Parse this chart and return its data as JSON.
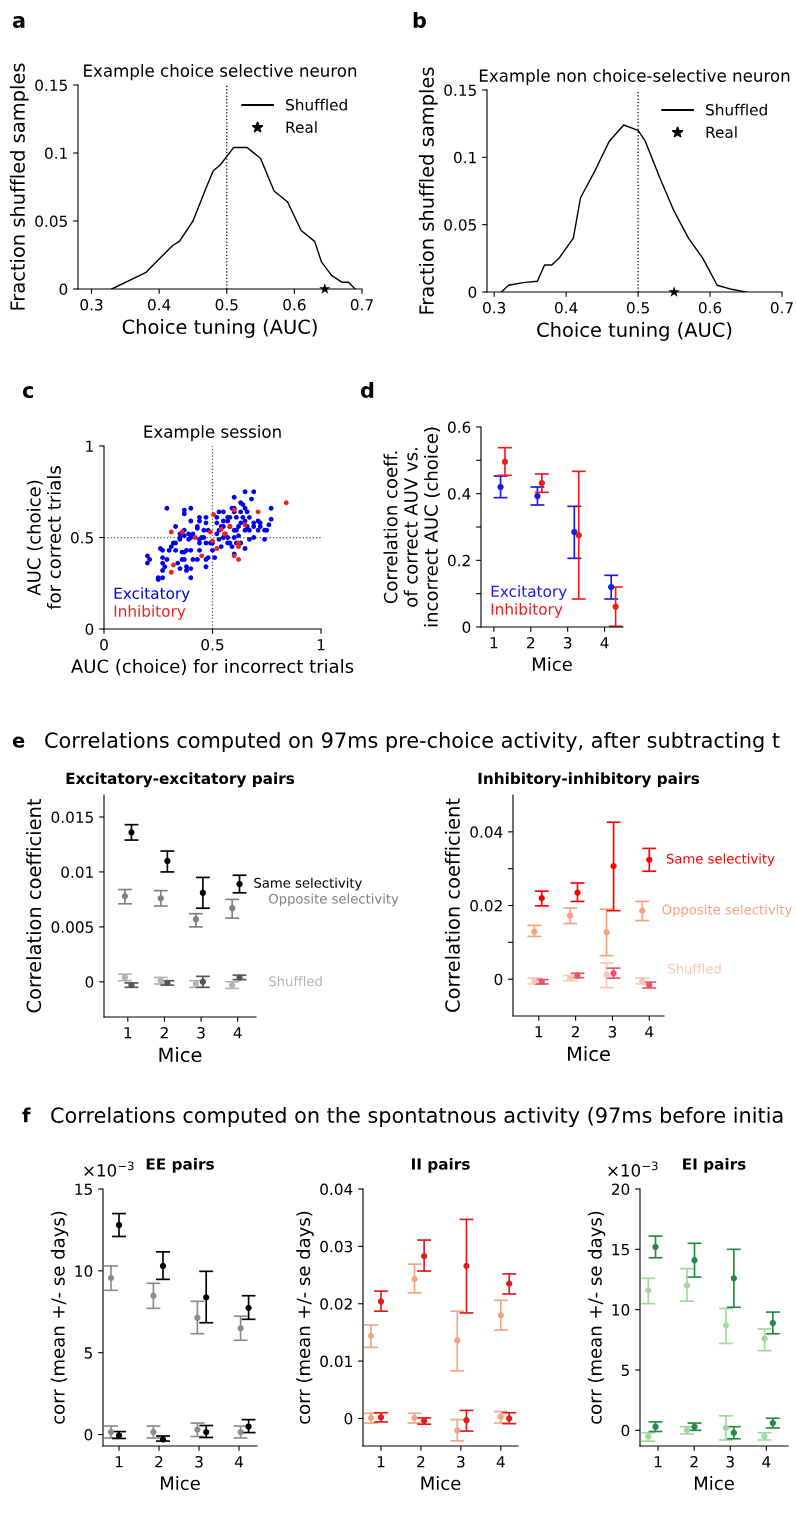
{
  "chart_data": [
    {
      "type": "line",
      "title": "Example choice selective neuron",
      "xlabel": "Choice tuning (AUC)",
      "ylabel": "Fraction shuffled samples",
      "annotations": [
        "a"
      ],
      "xlim": [
        0.28,
        0.7
      ],
      "xticks": [
        0.3,
        0.4,
        0.5,
        0.6,
        0.7
      ],
      "ylim": [
        0,
        0.15
      ],
      "yticks": [
        0,
        0.05,
        0.1,
        0.15
      ],
      "legend": "top right",
      "ref_lines": [
        {
          "axis": "x",
          "value": 0.5,
          "color": "#000000",
          "line_style": "dotted"
        }
      ],
      "series": [
        {
          "name": "Shuffled",
          "type": "line",
          "color": "#000000",
          "x": [
            0.33,
            0.38,
            0.4,
            0.42,
            0.43,
            0.45,
            0.47,
            0.48,
            0.49,
            0.51,
            0.53,
            0.55,
            0.57,
            0.59,
            0.61,
            0.63,
            0.64,
            0.655,
            0.67,
            0.68,
            0.69
          ],
          "values": [
            0,
            0.012,
            0.022,
            0.032,
            0.035,
            0.05,
            0.075,
            0.087,
            0.091,
            0.104,
            0.104,
            0.096,
            0.072,
            0.064,
            0.043,
            0.035,
            0.02,
            0.01,
            0.005,
            0.005,
            0
          ]
        },
        {
          "name": "Real",
          "type": "scatter",
          "marker": "star",
          "color": "#000000",
          "x": [
            0.645
          ],
          "values": [
            0
          ]
        }
      ]
    },
    {
      "type": "line",
      "title": "Example non choice-selective neuron",
      "xlabel": "Choice tuning (AUC)",
      "ylabel": "Fraction shuffled samples",
      "annotations": [
        "b"
      ],
      "xlim": [
        0.29,
        0.7
      ],
      "xticks": [
        0.3,
        0.4,
        0.5,
        0.6,
        0.7
      ],
      "ylim": [
        0,
        0.15
      ],
      "yticks": [
        0,
        0.05,
        0.1,
        0.15
      ],
      "legend": "top right",
      "ref_lines": [
        {
          "axis": "x",
          "value": 0.5,
          "color": "#000000",
          "line_style": "dotted"
        }
      ],
      "series": [
        {
          "name": "Shuffled",
          "type": "line",
          "color": "#000000",
          "x": [
            0.31,
            0.32,
            0.34,
            0.36,
            0.37,
            0.38,
            0.39,
            0.41,
            0.42,
            0.44,
            0.46,
            0.48,
            0.5,
            0.51,
            0.53,
            0.55,
            0.57,
            0.59,
            0.6,
            0.61,
            0.63,
            0.65
          ],
          "values": [
            0,
            0.005,
            0.007,
            0.008,
            0.02,
            0.02,
            0.025,
            0.04,
            0.07,
            0.09,
            0.112,
            0.124,
            0.12,
            0.112,
            0.085,
            0.06,
            0.04,
            0.025,
            0.015,
            0.005,
            0.002,
            0
          ]
        },
        {
          "name": "Real",
          "type": "scatter",
          "marker": "star",
          "color": "#000000",
          "x": [
            0.55
          ],
          "values": [
            0
          ]
        }
      ]
    },
    {
      "type": "scatter",
      "title": "Example session",
      "xlabel": "AUC (choice) for incorrect trials",
      "ylabel": "AUC (choice)\nfor correct trials",
      "annotations": [
        "c"
      ],
      "xlim": [
        0,
        1
      ],
      "xticks": [
        0,
        0.5,
        1
      ],
      "ylim": [
        0,
        1
      ],
      "yticks": [
        0,
        0.5,
        1
      ],
      "legend": "bottom left",
      "marker": "circle",
      "ref_lines": [
        {
          "axis": "x",
          "value": 0.5,
          "color": "#555555",
          "line_style": "dotted"
        },
        {
          "axis": "y",
          "value": 0.5,
          "color": "#555555",
          "line_style": "dotted"
        }
      ],
      "series": [
        {
          "name": "Excitatory",
          "color": "#0000ee",
          "x": [
            0.2,
            0.2,
            0.21,
            0.25,
            0.27,
            0.27,
            0.27,
            0.27,
            0.29,
            0.29,
            0.26,
            0.27,
            0.3,
            0.31,
            0.32,
            0.33,
            0.33,
            0.35,
            0.36,
            0.37,
            0.37,
            0.38,
            0.33,
            0.37,
            0.37,
            0.39,
            0.4,
            0.41,
            0.35,
            0.35,
            0.4,
            0.37,
            0.37,
            0.4,
            0.43,
            0.44,
            0.45,
            0.46,
            0.47,
            0.44,
            0.44,
            0.49,
            0.46,
            0.47,
            0.44,
            0.44,
            0.48,
            0.39,
            0.4,
            0.41,
            0.36,
            0.38,
            0.38,
            0.4,
            0.43,
            0.47,
            0.48,
            0.5,
            0.51,
            0.52,
            0.53,
            0.52,
            0.52,
            0.53,
            0.54,
            0.55,
            0.55,
            0.57,
            0.57,
            0.58,
            0.58,
            0.6,
            0.6,
            0.61,
            0.62,
            0.63,
            0.61,
            0.63,
            0.64,
            0.65,
            0.67,
            0.6,
            0.64,
            0.63,
            0.65,
            0.66,
            0.69,
            0.69,
            0.69,
            0.71,
            0.71,
            0.72,
            0.74,
            0.61,
            0.58,
            0.57,
            0.55,
            0.53,
            0.47,
            0.4,
            0.34,
            0.35,
            0.25,
            0.28,
            0.69,
            0.65,
            0.6,
            0.6,
            0.59,
            0.67,
            0.68,
            0.55,
            0.66,
            0.67,
            0.72,
            0.75,
            0.76,
            0.74,
            0.77,
            0.43,
            0.47,
            0.5,
            0.54,
            0.57,
            0.59,
            0.6,
            0.63,
            0.65,
            0.62,
            0.65,
            0.77
          ],
          "values": [
            0.4,
            0.36,
            0.38,
            0.27,
            0.28,
            0.32,
            0.36,
            0.39,
            0.38,
            0.66,
            0.44,
            0.43,
            0.43,
            0.45,
            0.47,
            0.47,
            0.43,
            0.49,
            0.42,
            0.42,
            0.38,
            0.43,
            0.56,
            0.54,
            0.51,
            0.52,
            0.5,
            0.52,
            0.52,
            0.5,
            0.59,
            0.65,
            0.63,
            0.66,
            0.56,
            0.49,
            0.5,
            0.5,
            0.47,
            0.43,
            0.47,
            0.47,
            0.54,
            0.58,
            0.61,
            0.59,
            0.54,
            0.49,
            0.43,
            0.38,
            0.38,
            0.34,
            0.32,
            0.33,
            0.38,
            0.38,
            0.39,
            0.43,
            0.39,
            0.52,
            0.54,
            0.58,
            0.61,
            0.64,
            0.56,
            0.59,
            0.56,
            0.61,
            0.59,
            0.61,
            0.56,
            0.54,
            0.5,
            0.54,
            0.56,
            0.58,
            0.61,
            0.64,
            0.61,
            0.54,
            0.49,
            0.66,
            0.68,
            0.69,
            0.66,
            0.64,
            0.58,
            0.56,
            0.5,
            0.54,
            0.59,
            0.58,
            0.49,
            0.47,
            0.47,
            0.5,
            0.5,
            0.49,
            0.34,
            0.28,
            0.36,
            0.33,
            0.28,
            0.34,
            0.75,
            0.75,
            0.72,
            0.64,
            0.66,
            0.61,
            0.71,
            0.64,
            0.56,
            0.54,
            0.56,
            0.54,
            0.57,
            0.54,
            0.6,
            0.55,
            0.61,
            0.47,
            0.45,
            0.47,
            0.45,
            0.41,
            0.47,
            0.44,
            0.51,
            0.59,
            0.66
          ]
        },
        {
          "name": "Inhibitory",
          "color": "#ee2020",
          "x": [
            0.31,
            0.32,
            0.31,
            0.36,
            0.42,
            0.45,
            0.49,
            0.5,
            0.52,
            0.505,
            0.54,
            0.555,
            0.56,
            0.58,
            0.6,
            0.6,
            0.62,
            0.62,
            0.62,
            0.65,
            0.71,
            0.84
          ],
          "values": [
            0.31,
            0.35,
            0.53,
            0.53,
            0.5,
            0.4,
            0.53,
            0.48,
            0.44,
            0.625,
            0.545,
            0.52,
            0.52,
            0.56,
            0.4,
            0.65,
            0.47,
            0.45,
            0.38,
            0.57,
            0.64,
            0.69
          ]
        }
      ]
    },
    {
      "type": "scatter",
      "xlabel": "Mice",
      "ylabel": "Correlation coeff.\nof correct AUV vs.\nincorrect AUC (choice)",
      "annotations": [
        "d"
      ],
      "xlim": [
        0.65,
        4.5
      ],
      "xticks": [
        1,
        2,
        3,
        4
      ],
      "ylim": [
        0,
        0.6
      ],
      "yticks": [
        0,
        {
          "value": 0.1,
          "label": null
        },
        0.2,
        {
          "value": 0.3,
          "label": null
        },
        0.4,
        {
          "value": 0.5,
          "label": null
        },
        0.6
      ],
      "legend": "bottom left",
      "marker": "circle",
      "series": [
        {
          "name": "Excitatory",
          "color": "#1a1aee",
          "x": [
            1.18,
            2.18,
            3.18,
            4.18
          ],
          "values": [
            0.42,
            0.393,
            0.285,
            0.12
          ],
          "errors": [
            [
              0.388,
              0.453
            ],
            [
              0.366,
              0.42
            ],
            [
              0.206,
              0.362
            ],
            [
              0.084,
              0.155
            ]
          ]
        },
        {
          "name": "Inhibitory",
          "color": "#ee1c1c",
          "x": [
            1.3,
            2.3,
            3.3,
            4.3
          ],
          "values": [
            0.496,
            0.432,
            0.275,
            0.061
          ],
          "errors": [
            [
              0.455,
              0.538
            ],
            [
              0.404,
              0.459
            ],
            [
              0.084,
              0.467
            ],
            [
              0.002,
              0.12
            ]
          ]
        }
      ]
    },
    {
      "type": "scatter",
      "title": "Excitatory-excitatory pairs",
      "xlabel": "Mice",
      "ylabel": "Correlation coefficient",
      "annotations": [
        "e",
        "Correlations computed on 97ms pre-choice activity, after subtracting t"
      ],
      "xlim": [
        0.35,
        4.5
      ],
      "xticks": [
        1,
        2,
        3,
        4
      ],
      "ylim": [
        -0.0032,
        0.017
      ],
      "yticks": [
        0,
        0.005,
        0.01,
        0.015
      ],
      "marker": "circle",
      "series": [
        {
          "color": "#b3b3b3",
          "name": "Shuffled",
          "x": [
            0.92,
            1.9,
            2.86,
            3.85
          ],
          "values": [
            0.0004,
            0.0001,
            -0.0002,
            -0.0003
          ],
          "errors": [
            [
              0.0001,
              0.0007
            ],
            [
              -0.0002,
              0.0004
            ],
            [
              -0.0005,
              0.0001
            ],
            [
              -0.0006,
              0
            ]
          ]
        },
        {
          "color": "#555555",
          "x": [
            1.1,
            2.08,
            3.05,
            4.05
          ],
          "values": [
            -0.0003,
            -0.0001,
            0,
            0.0004
          ],
          "errors": [
            [
              -0.0005,
              -0.0001
            ],
            [
              -0.0003,
              0.0001
            ],
            [
              -0.0005,
              0.0005
            ],
            [
              0.0002,
              0.0006
            ]
          ]
        },
        {
          "name": "Opposite selectivity",
          "color": "#808080",
          "x": [
            0.92,
            1.9,
            2.86,
            3.85
          ],
          "values": [
            0.0078,
            0.0076,
            0.0057,
            0.0067
          ],
          "errors": [
            [
              0.0071,
              0.0084
            ],
            [
              0.0069,
              0.0083
            ],
            [
              0.005,
              0.0062
            ],
            [
              0.0058,
              0.0075
            ]
          ]
        },
        {
          "name": "Same selectivity",
          "color": "#000000",
          "x": [
            1.1,
            2.08,
            3.05,
            4.05
          ],
          "values": [
            0.0136,
            0.011,
            0.0081,
            0.0089
          ],
          "errors": [
            [
              0.0129,
              0.0143
            ],
            [
              0.01,
              0.0119
            ],
            [
              0.0067,
              0.0095
            ],
            [
              0.0081,
              0.0097
            ]
          ]
        }
      ]
    },
    {
      "type": "scatter",
      "title": "Inhibitory-inhibitory pairs",
      "xlabel": "Mice",
      "ylabel": "Correlation coefficient",
      "xlim": [
        0.3,
        4.4
      ],
      "xticks": [
        1,
        2,
        3,
        4
      ],
      "ylim": [
        -0.01,
        0.05
      ],
      "yticks": [
        0,
        {
          "value": 0.01,
          "label": null
        },
        0.02,
        {
          "value": 0.03,
          "label": null
        },
        0.04
      ],
      "marker": "circle",
      "series": [
        {
          "name": "Shuffled",
          "color": "#f9c7b3",
          "x": [
            0.88,
            1.85,
            2.84,
            3.81
          ],
          "values": [
            -0.0005,
            0.0003,
            0.0012,
            -0.0005
          ],
          "errors": [
            [
              -0.0013,
              0.0003
            ],
            [
              -0.0004,
              0.001
            ],
            [
              -0.0023,
              0.0044
            ],
            [
              -0.0013,
              0.0003
            ]
          ]
        },
        {
          "color": "#e8546b",
          "x": [
            1.08,
            2.05,
            3.03,
            4.0
          ],
          "values": [
            -0.0007,
            0.001,
            0.0016,
            -0.0016
          ],
          "errors": [
            [
              -0.0013,
              -0.0001
            ],
            [
              0.0004,
              0.0016
            ],
            [
              0.0003,
              0.003
            ],
            [
              -0.0024,
              -0.0008
            ]
          ]
        },
        {
          "name": "Opposite selectivity",
          "color": "#f6a27e",
          "x": [
            0.88,
            1.85,
            2.84,
            3.81
          ],
          "values": [
            0.0129,
            0.0173,
            0.0127,
            0.0186
          ],
          "errors": [
            [
              0.0116,
              0.0146
            ],
            [
              0.0151,
              0.0193
            ],
            [
              0.0064,
              0.019
            ],
            [
              0.0159,
              0.0211
            ]
          ]
        },
        {
          "name": "Same selectivity",
          "color": "#ff0000",
          "x": [
            1.08,
            2.05,
            3.03,
            4.0
          ],
          "values": [
            0.022,
            0.0235,
            0.0307,
            0.0324
          ],
          "errors": [
            [
              0.0199,
              0.0239
            ],
            [
              0.0211,
              0.0261
            ],
            [
              0.0186,
              0.0426
            ],
            [
              0.0293,
              0.0355
            ]
          ]
        }
      ]
    },
    {
      "type": "scatter",
      "title": "EE pairs",
      "xlabel": "Mice",
      "ylabel": "corr (mean +/- se days)",
      "annotations": [
        "f",
        "Correlations computed on the spontatnous activity (97ms before initia",
        "×10$^{−3}$"
      ],
      "xlim": [
        0.6,
        4.45
      ],
      "xticks": [
        1,
        2,
        3,
        4
      ],
      "ylim": [
        -0.7,
        15
      ],
      "yticks": [
        0,
        5,
        10,
        15
      ],
      "marker": "circle",
      "series": [
        {
          "color": "#8c8c8c",
          "x": [
            0.8,
            1.86,
            2.96,
            4.04
          ],
          "values": [
            9.57,
            8.48,
            7.13,
            6.49
          ],
          "errors": [
            [
              8.81,
              10.3
            ],
            [
              7.71,
              9.24
            ],
            [
              6.16,
              8.14
            ],
            [
              5.76,
              7.23
            ]
          ]
        },
        {
          "color": "#8c8c8c",
          "x": [
            0.8,
            1.86,
            2.96,
            4.04
          ],
          "values": [
            0.15,
            0.15,
            0.3,
            0.15
          ],
          "errors": [
            [
              -0.21,
              0.52
            ],
            [
              -0.21,
              0.52
            ],
            [
              -0.12,
              0.7
            ],
            [
              -0.21,
              0.52
            ]
          ]
        },
        {
          "color": "#000000",
          "x": [
            1.0,
            2.1,
            3.18,
            4.24
          ],
          "values": [
            12.8,
            10.3,
            8.38,
            7.74
          ],
          "errors": [
            [
              12.1,
              13.5
            ],
            [
              9.48,
              11.16
            ],
            [
              6.83,
              9.97
            ],
            [
              7.04,
              8.48
            ]
          ]
        },
        {
          "color": "#000000",
          "x": [
            1.0,
            2.1,
            3.18,
            4.24
          ],
          "values": [
            -0.06,
            -0.3,
            0.15,
            0.49
          ],
          "errors": [
            [
              -0.24,
              0.18
            ],
            [
              -0.4,
              -0.09
            ],
            [
              -0.18,
              0.55
            ],
            [
              0.12,
              0.91
            ]
          ]
        }
      ]
    },
    {
      "type": "scatter",
      "title": "II pairs",
      "xlabel": "Mice",
      "ylabel": "corr (mean +/- se days)",
      "xlim": [
        0.55,
        4.43
      ],
      "xticks": [
        1,
        2,
        3,
        4
      ],
      "ylim": [
        -0.0048,
        0.04
      ],
      "yticks": [
        0,
        0.01,
        0.02,
        0.03,
        0.04
      ],
      "marker": "circle",
      "series": [
        {
          "color": "#f4a582",
          "x": [
            0.75,
            1.84,
            2.91,
            4.0
          ],
          "values": [
            0.0144,
            0.0243,
            0.0136,
            0.018
          ],
          "errors": [
            [
              0.0124,
              0.0163
            ],
            [
              0.0219,
              0.0269
            ],
            [
              0.0083,
              0.0187
            ],
            [
              0.0154,
              0.0206
            ]
          ]
        },
        {
          "color": "#f4a582",
          "x": [
            0.75,
            1.84,
            2.91,
            4.0
          ],
          "values": [
            0.0001,
            0.0001,
            -0.0021,
            0.0003
          ],
          "errors": [
            [
              -0.0008,
              0.0009
            ],
            [
              -0.0008,
              0.0009
            ],
            [
              -0.0039,
              -0.0002
            ],
            [
              -0.0008,
              0.0012
            ]
          ]
        },
        {
          "color": "#e31a1c",
          "x": [
            1.0,
            2.08,
            3.14,
            4.21
          ],
          "values": [
            0.0204,
            0.0283,
            0.0266,
            0.0235
          ],
          "errors": [
            [
              0.0187,
              0.0222
            ],
            [
              0.0257,
              0.0311
            ],
            [
              0.0184,
              0.0347
            ],
            [
              0.0217,
              0.0252
            ]
          ]
        },
        {
          "color": "#e31a1c",
          "x": [
            1.0,
            2.08,
            3.14,
            4.21
          ],
          "values": [
            0.0002,
            -0.0004,
            -0.0003,
            0
          ],
          "errors": [
            [
              -0.0006,
              0.001
            ],
            [
              -0.001,
              0.0001
            ],
            [
              -0.0022,
              0.0014
            ],
            [
              -0.0009,
              0.001
            ]
          ]
        }
      ]
    },
    {
      "type": "scatter",
      "title": "EI pairs",
      "xlabel": "Mice",
      "ylabel": "corr (mean +/- se days)",
      "annotations": [
        "×10$^{−3}$"
      ],
      "xlim": [
        0.5,
        4.6
      ],
      "xticks": [
        1,
        2,
        3,
        4
      ],
      "ylim": [
        -1.3,
        20
      ],
      "yticks": [
        0,
        5,
        10,
        15,
        20
      ],
      "marker": "circle",
      "series": [
        {
          "color": "#a1d99b",
          "x": [
            0.73,
            1.8,
            2.88,
            3.95
          ],
          "values": [
            11.6,
            12.0,
            8.7,
            7.6
          ],
          "errors": [
            [
              10.5,
              12.6
            ],
            [
              10.7,
              13.4
            ],
            [
              7.2,
              10.1
            ],
            [
              6.6,
              8.4
            ]
          ]
        },
        {
          "color": "#a1d99b",
          "x": [
            0.73,
            1.8,
            2.88,
            3.95
          ],
          "values": [
            -0.5,
            0.0,
            0.2,
            -0.5
          ],
          "errors": [
            [
              -0.9,
              -0.2
            ],
            [
              -0.3,
              0.3
            ],
            [
              -0.8,
              1.2
            ],
            [
              -0.8,
              -0.2
            ]
          ]
        },
        {
          "color": "#238b45",
          "x": [
            0.93,
            2.01,
            3.1,
            4.18
          ],
          "values": [
            15.2,
            14.1,
            12.6,
            8.9
          ],
          "errors": [
            [
              14.3,
              16.1
            ],
            [
              12.7,
              15.5
            ],
            [
              10.2,
              15.0
            ],
            [
              8.0,
              9.8
            ]
          ]
        },
        {
          "color": "#238b45",
          "x": [
            0.93,
            2.01,
            3.1,
            4.18
          ],
          "values": [
            0.3,
            0.3,
            -0.2,
            0.6
          ],
          "errors": [
            [
              -0.1,
              0.7
            ],
            [
              0.0,
              0.6
            ],
            [
              -0.7,
              0.3
            ],
            [
              0.2,
              1.0
            ]
          ]
        }
      ]
    }
  ]
}
